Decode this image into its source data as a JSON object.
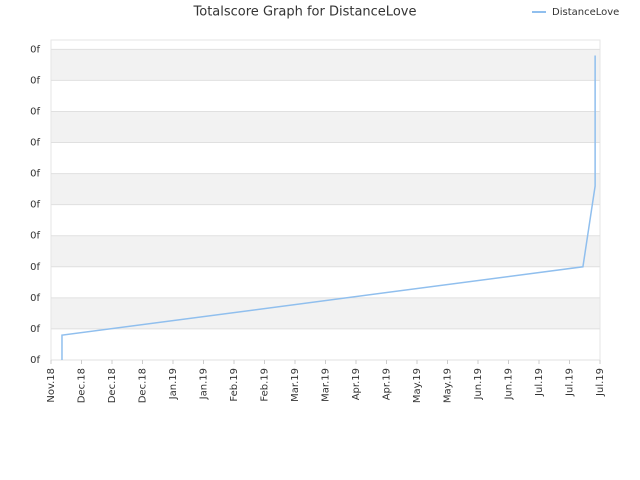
{
  "chart_data": {
    "type": "line",
    "title": "Totalscore Graph for DistanceLove",
    "legend": "top-right",
    "grid": true,
    "series": [
      {
        "name": "DistanceLove",
        "color": "#90bfee",
        "x": [
          0.36,
          0.36,
          17.44,
          17.84,
          17.84
        ],
        "values": [
          0,
          0.8,
          3.0,
          5.6,
          9.8
        ]
      }
    ],
    "xlim": [
      0,
      18
    ],
    "xticks": [
      {
        "value": 0,
        "label": "Nov.18"
      },
      {
        "value": 1,
        "label": "Dec.18"
      },
      {
        "value": 2,
        "label": "Dec.18"
      },
      {
        "value": 3,
        "label": "Dec.18"
      },
      {
        "value": 4,
        "label": "Jan.19"
      },
      {
        "value": 5,
        "label": "Jan.19"
      },
      {
        "value": 6,
        "label": "Feb.19"
      },
      {
        "value": 7,
        "label": "Feb.19"
      },
      {
        "value": 8,
        "label": "Mar.19"
      },
      {
        "value": 9,
        "label": "Mar.19"
      },
      {
        "value": 10,
        "label": "Apr.19"
      },
      {
        "value": 11,
        "label": "Apr.19"
      },
      {
        "value": 12,
        "label": "May.19"
      },
      {
        "value": 13,
        "label": "May.19"
      },
      {
        "value": 14,
        "label": "Jun.19"
      },
      {
        "value": 15,
        "label": "Jun.19"
      },
      {
        "value": 16,
        "label": "Jul.19"
      },
      {
        "value": 17,
        "label": "Jul.19"
      },
      {
        "value": 18,
        "label": "Jul.19"
      }
    ],
    "ylim": [
      0,
      10.3
    ],
    "yticks": [
      {
        "value": 0,
        "label": "0f"
      },
      {
        "value": 1,
        "label": "0f"
      },
      {
        "value": 2,
        "label": "0f"
      },
      {
        "value": 3,
        "label": "0f"
      },
      {
        "value": 4,
        "label": "0f"
      },
      {
        "value": 5,
        "label": "0f"
      },
      {
        "value": 6,
        "label": "0f"
      },
      {
        "value": 7,
        "label": "0f"
      },
      {
        "value": 8,
        "label": "0f"
      },
      {
        "value": 9,
        "label": "0f"
      },
      {
        "value": 10,
        "label": "0f"
      }
    ]
  }
}
